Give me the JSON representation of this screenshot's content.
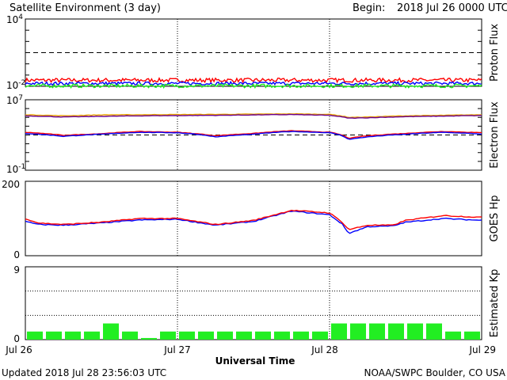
{
  "header": {
    "title": "Satellite Environment (3 day)",
    "begin_label": "Begin:",
    "begin_value": "2018 Jul 26 0000 UTC"
  },
  "footer": {
    "updated": "Updated 2018 Jul 28 23:56:03 UTC",
    "credit": "NOAA/SWPC Boulder, CO USA"
  },
  "x_axis": {
    "label": "Universal Time",
    "ticks": [
      "Jul 26",
      "Jul 27",
      "Jul 28",
      "Jul 29"
    ]
  },
  "colors": {
    "red": "#ff0000",
    "blue": "#0000ff",
    "green": "#22ee22",
    "orange": "#e8a200",
    "purple": "#6a0090",
    "kp_bar": "#22ee22"
  },
  "chart_data": [
    {
      "type": "line",
      "ylabel": "Proton Flux",
      "scale": "log",
      "ylim_exp": [
        -2,
        4
      ],
      "yticks": [
        {
          "base": "10",
          "exp": "4"
        },
        {
          "base": "10",
          "exp": "-2"
        }
      ],
      "threshold": 10,
      "x": [
        0,
        72
      ],
      "series": [
        {
          "color": "red",
          "level": 0.035,
          "jitter": 0.18
        },
        {
          "color": "blue",
          "level": 0.018,
          "jitter": 0.14
        },
        {
          "color": "green",
          "level": 0.011,
          "jitter": 0.16
        }
      ]
    },
    {
      "type": "line",
      "ylabel": "Electron Flux",
      "scale": "log",
      "ylim_exp": [
        -1,
        7
      ],
      "yticks": [
        {
          "base": "10",
          "exp": "7"
        },
        {
          "base": "10",
          "exp": "-1"
        }
      ],
      "threshold": 1000,
      "x": [
        0,
        6,
        12,
        18,
        24,
        30,
        36,
        42,
        48,
        51,
        54,
        60,
        66,
        72
      ],
      "series": [
        {
          "color": "orange",
          "values": [
            200000,
            150000,
            190000,
            200000,
            210000,
            220000,
            230000,
            250000,
            220000,
            100000,
            110000,
            150000,
            170000,
            200000
          ]
        },
        {
          "color": "purple",
          "values": [
            150000,
            110000,
            130000,
            150000,
            160000,
            170000,
            190000,
            210000,
            170000,
            80000,
            90000,
            120000,
            140000,
            160000
          ]
        },
        {
          "color": "red",
          "values": [
            2000,
            900,
            1400,
            2500,
            2000,
            800,
            1500,
            3000,
            2000,
            400,
            800,
            1500,
            2500,
            1800
          ]
        },
        {
          "color": "blue",
          "values": [
            1500,
            700,
            1200,
            2000,
            1800,
            600,
            1200,
            2500,
            1800,
            300,
            600,
            1200,
            2000,
            1300
          ]
        }
      ]
    },
    {
      "type": "line",
      "ylabel": "GOES Hp",
      "scale": "linear",
      "ylim": [
        0,
        200
      ],
      "yticks": [
        "200",
        "0"
      ],
      "x": [
        0,
        2,
        6,
        12,
        18,
        24,
        30,
        36,
        42,
        48,
        50,
        51,
        54,
        58,
        60,
        66,
        72
      ],
      "series": [
        {
          "color": "blue",
          "values": [
            92,
            84,
            82,
            88,
            96,
            98,
            82,
            92,
            120,
            110,
            85,
            60,
            78,
            80,
            90,
            100,
            95
          ]
        },
        {
          "color": "red",
          "values": [
            100,
            88,
            84,
            90,
            100,
            100,
            84,
            95,
            122,
            115,
            90,
            70,
            82,
            82,
            95,
            108,
            103
          ]
        }
      ]
    },
    {
      "type": "bar",
      "ylabel": "Estimated Kp",
      "ylim": [
        0,
        9
      ],
      "yticks": [
        "9",
        "0"
      ],
      "gridlines": [
        3,
        6
      ],
      "bar_hours": 3,
      "values": [
        1,
        1,
        1,
        1,
        2,
        1,
        0.2,
        1,
        1,
        1,
        1,
        1,
        1,
        1,
        1,
        1,
        2,
        2,
        2,
        2,
        2,
        2,
        1,
        1
      ]
    }
  ]
}
